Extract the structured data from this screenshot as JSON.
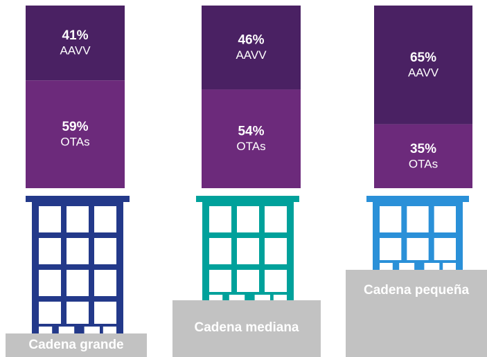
{
  "chart_data": {
    "type": "stacked-bar",
    "categories": [
      "Cadena grande",
      "Cadena mediana",
      "Cadena pequeña"
    ],
    "series": [
      {
        "name": "AAVV",
        "color": "#4a2163",
        "values": [
          41,
          46,
          65
        ],
        "value_labels": [
          "41%",
          "46%",
          "65%"
        ]
      },
      {
        "name": "OTAs",
        "color": "#6c2a7b",
        "values": [
          59,
          54,
          35
        ],
        "value_labels": [
          "59%",
          "54%",
          "35%"
        ]
      }
    ],
    "building_colors": [
      "#23398a",
      "#00a19b",
      "#2a90d8"
    ]
  }
}
